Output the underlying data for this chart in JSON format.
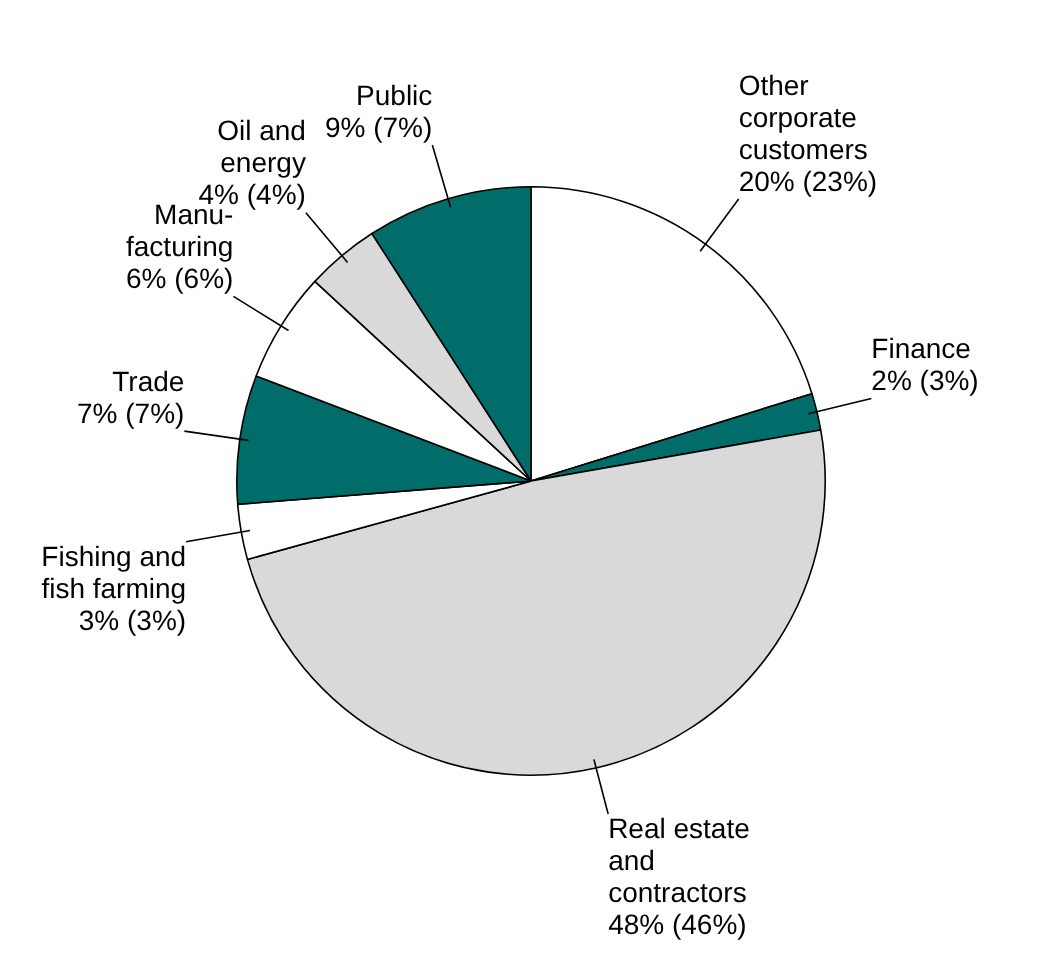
{
  "chart_data": {
    "type": "pie",
    "categories": [
      "Other\ncorporate\ncustomers",
      "Finance",
      "Real estate\nand\ncontractors",
      "Fishing and\nfish farming",
      "Trade",
      "Manu-\nfacturing",
      "Oil and\nenergy",
      "Public"
    ],
    "values": [
      20,
      2,
      48,
      3,
      7,
      6,
      4,
      9
    ],
    "value_labels": [
      "20% (23%)",
      "2% (3%)",
      "48% (46%)",
      "3% (3%)",
      "7% (7%)",
      "6% (6%)",
      "4% (4%)",
      "9% (7%)"
    ],
    "colors": [
      "#ffffff",
      "#006d6a",
      "#d9d9d9",
      "#ffffff",
      "#006d6a",
      "#ffffff",
      "#d9d9d9",
      "#006d6a"
    ],
    "legend": false
  }
}
